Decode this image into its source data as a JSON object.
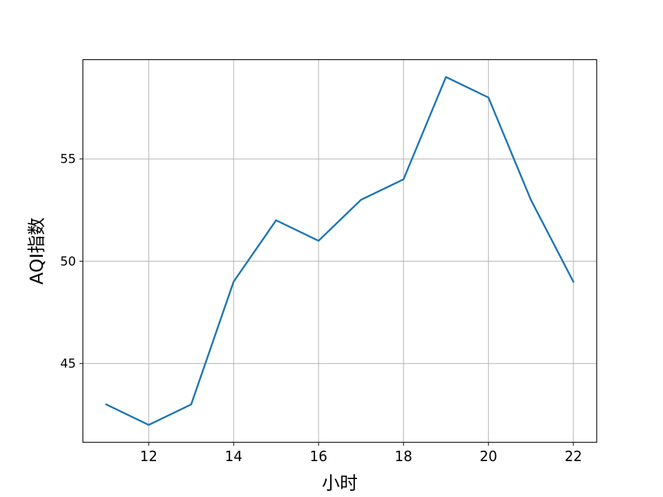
{
  "chart_data": {
    "type": "line",
    "title": "",
    "xlabel": "小时",
    "ylabel": "AQI指数",
    "xlim": [
      10.45,
      22.55
    ],
    "ylim": [
      41.15,
      59.85
    ],
    "xticks": [
      12,
      14,
      16,
      18,
      20,
      22
    ],
    "yticks": [
      45,
      50,
      55
    ],
    "grid": true,
    "legend": "none",
    "series": [
      {
        "color": "#1f77b4",
        "x": [
          11,
          12,
          13,
          14,
          15,
          16,
          17,
          18,
          19,
          20,
          21,
          22
        ],
        "y": [
          43,
          42,
          43,
          49,
          52,
          51,
          53,
          54,
          59,
          58,
          53,
          49
        ]
      }
    ]
  }
}
